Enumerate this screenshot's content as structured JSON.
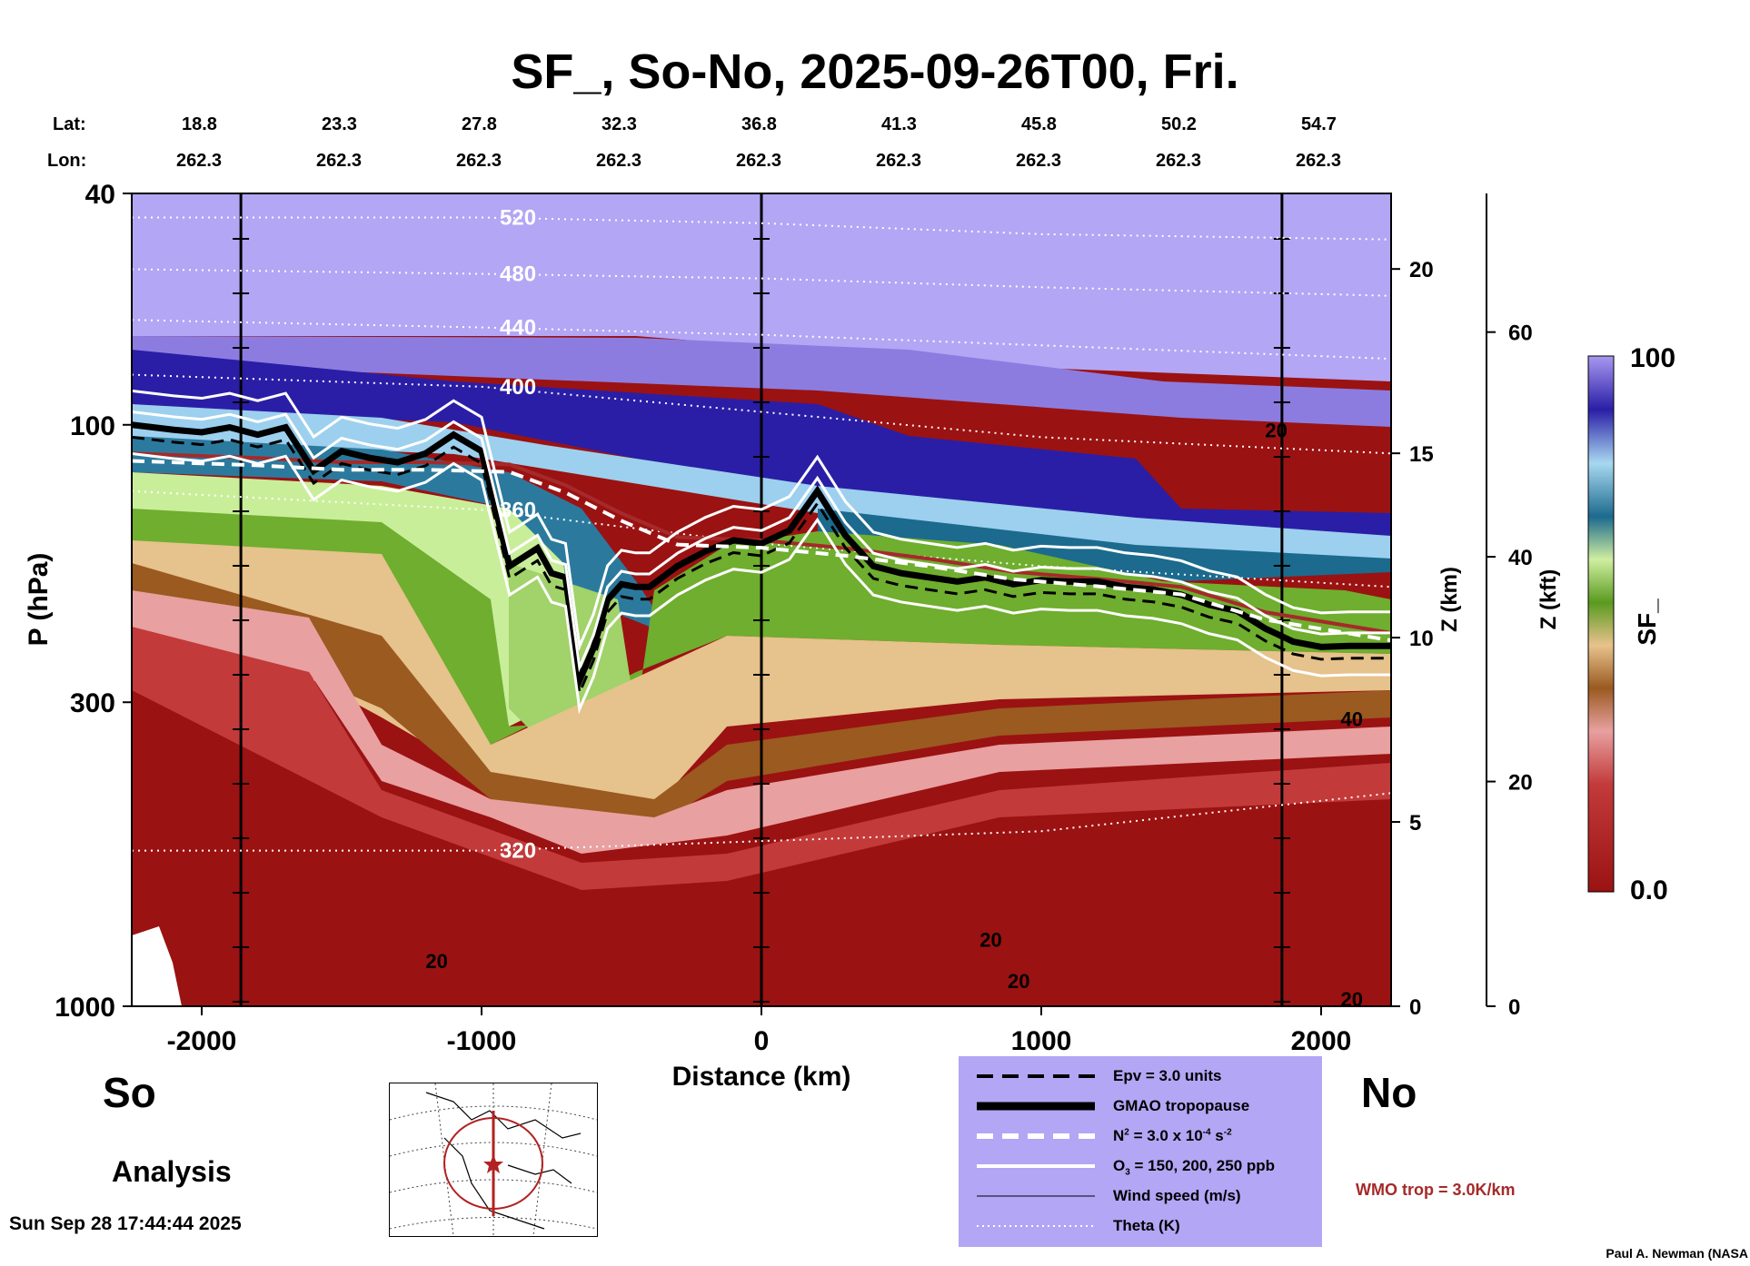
{
  "title": "SF_, So-No, 2025-09-26T00, Fri.",
  "lat_label": "Lat:",
  "lon_label": "Lon:",
  "lat_values": [
    "18.8",
    "23.3",
    "27.8",
    "32.3",
    "36.8",
    "41.3",
    "45.8",
    "50.2",
    "54.7"
  ],
  "lon_values": [
    "262.3",
    "262.3",
    "262.3",
    "262.3",
    "262.3",
    "262.3",
    "262.3",
    "262.3",
    "262.3"
  ],
  "side_left": "So",
  "side_right": "No",
  "analysis_label": "Analysis",
  "timestamp": "Sun Sep 28 17:44:44 2025",
  "credit": "Paul A. Newman (NASA",
  "wmo_label": "WMO trop = 3.0K/km",
  "legend": {
    "epv": "Epv = 3.0 units",
    "trop": "GMAO tropopause",
    "n2_prefix": "N",
    "n2_sup": "2",
    "n2_mid": " = 3.0 x 10",
    "n2_exp": "-4",
    "n2_unit": " s",
    "n2_unit_sup": "-2",
    "o3_prefix": "O",
    "o3_sub": "3",
    "o3_rest": " = 150, 200, 250 ppb",
    "wind": "Wind speed (m/s)",
    "theta": "Theta (K)"
  },
  "chart_data": {
    "type": "heatmap",
    "title": "SF_, So-No, 2025-09-26T00, Fri.",
    "xlabel": "Distance (km)",
    "ylabel": "P (hPa)",
    "xlim": [
      -2250,
      2250
    ],
    "ylim": [
      1000,
      40
    ],
    "x_ticks": [
      -2000,
      -1000,
      0,
      1000,
      2000
    ],
    "x_tick_labels": [
      "-2000",
      "-1000",
      "0",
      "1000",
      "2000"
    ],
    "y_ticks": [
      40,
      100,
      300,
      1000
    ],
    "y_tick_labels": [
      "40",
      "100",
      "300",
      "1000"
    ],
    "z_km_label": "Z (km)",
    "z_km_ticks": [
      0,
      5,
      10,
      15,
      20
    ],
    "z_km_tick_labels": [
      "0",
      "5",
      "10",
      "15",
      "20"
    ],
    "z_kft_label": "Z (kft)",
    "z_kft_ticks": [
      0,
      20,
      40,
      60
    ],
    "z_kft_tick_labels": [
      "0",
      "20",
      "40",
      "60"
    ],
    "colorbar": {
      "label": "SF_",
      "min": 0.0,
      "max": 100,
      "min_label": "0.0",
      "max_label": "100"
    },
    "vertical_markers_km": [
      -1860,
      0,
      1860
    ],
    "tropopause_gmao": {
      "x": [
        -2250,
        -2100,
        -2000,
        -1900,
        -1800,
        -1700,
        -1600,
        -1500,
        -1400,
        -1300,
        -1200,
        -1100,
        -1000,
        -900,
        -800,
        -750,
        -700,
        -650,
        -600,
        -550,
        -500,
        -450,
        -400,
        -300,
        -200,
        -100,
        0,
        100,
        200,
        300,
        400,
        500,
        600,
        700,
        800,
        900,
        1000,
        1100,
        1200,
        1300,
        1400,
        1500,
        1600,
        1700,
        1800,
        1900,
        2000,
        2100,
        2250
      ],
      "p": [
        100,
        102,
        103,
        101,
        104,
        101,
        120,
        111,
        114,
        116,
        112,
        104,
        111,
        175,
        163,
        180,
        183,
        275,
        242,
        200,
        188,
        190,
        190,
        175,
        165,
        158,
        160,
        152,
        130,
        155,
        175,
        180,
        183,
        186,
        183,
        188,
        185,
        186,
        186,
        190,
        192,
        196,
        204,
        209,
        224,
        236,
        241,
        240,
        240
      ]
    },
    "wmo_tropopause": {
      "x": [
        -2250,
        -1800,
        -1500,
        -1200,
        -900,
        -700,
        -500,
        -300,
        0,
        300,
        600,
        900,
        1200,
        1500,
        1800,
        2250
      ],
      "p": [
        112,
        114,
        116,
        116,
        117,
        127,
        142,
        156,
        158,
        163,
        170,
        179,
        184,
        190,
        210,
        228
      ]
    },
    "theta_contours": [
      {
        "label": "520",
        "x": [
          -2250,
          -1000,
          0,
          1000,
          2250
        ],
        "p": [
          44,
          44,
          45,
          47,
          48
        ]
      },
      {
        "label": "480",
        "x": [
          -2250,
          -1000,
          0,
          1000,
          2250
        ],
        "p": [
          54,
          55,
          56,
          58,
          60
        ]
      },
      {
        "label": "440",
        "x": [
          -2250,
          -1000,
          0,
          1000,
          2250
        ],
        "p": [
          66,
          68,
          70,
          73,
          77
        ]
      },
      {
        "label": "400",
        "x": [
          -2250,
          -1000,
          0,
          1000,
          2250
        ],
        "p": [
          82,
          86,
          95,
          105,
          112
        ]
      },
      {
        "label": "360",
        "x": [
          -2250,
          -1000,
          0,
          1000,
          2250
        ],
        "p": [
          130,
          140,
          160,
          175,
          190
        ]
      },
      {
        "label": "320",
        "x": [
          -2250,
          -1000,
          0,
          1000,
          2250
        ],
        "p": [
          540,
          540,
          520,
          500,
          430
        ]
      }
    ],
    "wind_speed_labels": [
      "20",
      "20",
      "20",
      "20",
      "40",
      "20"
    ]
  }
}
